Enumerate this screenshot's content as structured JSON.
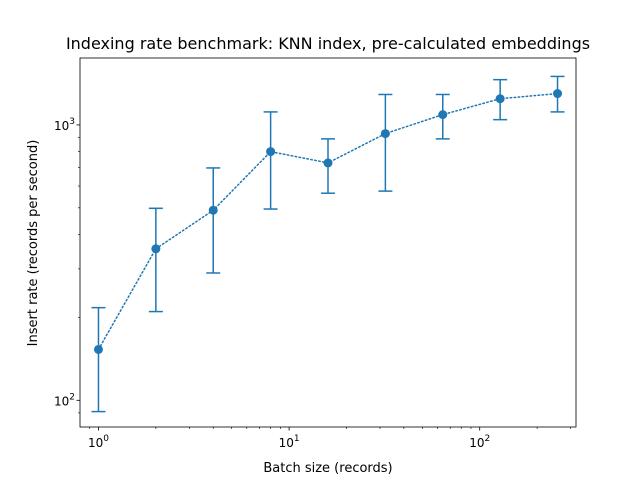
{
  "chart_data": {
    "type": "line",
    "title": "Indexing rate benchmark: KNN index, pre-calculated embeddings",
    "xlabel": "Batch size (records)",
    "ylabel": "Insert rate (records per second)",
    "xscale": "log",
    "yscale": "log",
    "xlim": [
      0.8,
      320
    ],
    "ylim": [
      80,
      1750
    ],
    "grid": false,
    "legend": "none",
    "x_major_ticks": [
      {
        "base": "10",
        "exp": "0",
        "value": 1
      },
      {
        "base": "10",
        "exp": "1",
        "value": 10
      },
      {
        "base": "10",
        "exp": "2",
        "value": 100
      }
    ],
    "y_major_ticks": [
      {
        "base": "10",
        "exp": "2",
        "value": 100
      },
      {
        "base": "10",
        "exp": "3",
        "value": 1000
      }
    ],
    "series": [
      {
        "color": "#1f77b4",
        "linestyle": "dotted",
        "marker": "circle",
        "x": [
          1,
          2,
          4,
          8,
          16,
          32,
          64,
          128,
          256
        ],
        "y": [
          153,
          355,
          490,
          800,
          728,
          930,
          1090,
          1245,
          1300
        ],
        "yerr_low": [
          91,
          210,
          290,
          495,
          565,
          575,
          890,
          1045,
          1115
        ],
        "yerr_high": [
          217,
          498,
          698,
          1115,
          890,
          1290,
          1290,
          1460,
          1500
        ]
      }
    ]
  }
}
